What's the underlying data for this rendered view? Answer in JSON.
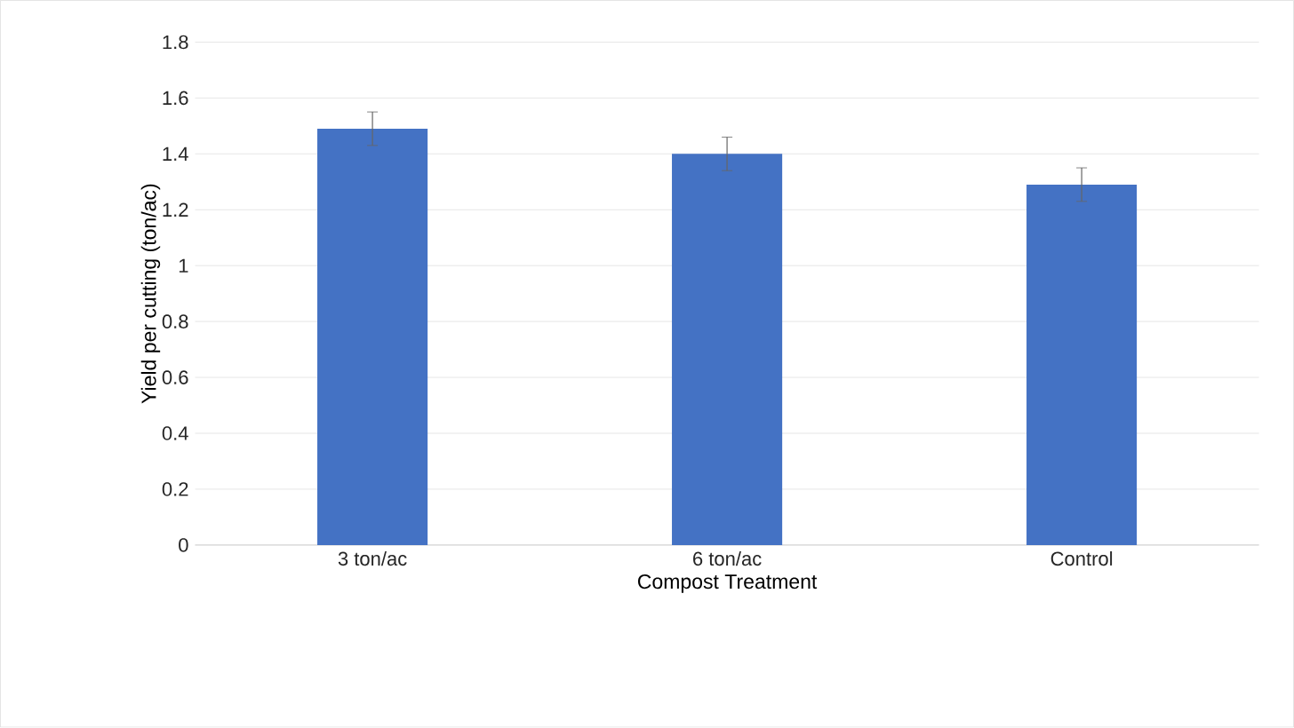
{
  "chart_data": {
    "type": "bar",
    "xlabel": "Compost Treatment",
    "ylabel": "Yield per cutting (ton/ac)",
    "categories": [
      "3 ton/ac",
      "6 ton/ac",
      "Control"
    ],
    "values": [
      1.49,
      1.4,
      1.29
    ],
    "errors": [
      0.06,
      0.06,
      0.06
    ],
    "color": "#4472c4",
    "ylim": [
      0,
      1.8
    ],
    "yticks": [
      0,
      0.2,
      0.4,
      0.6,
      0.8,
      1,
      1.2,
      1.4,
      1.6,
      1.8
    ],
    "grid": "y"
  }
}
